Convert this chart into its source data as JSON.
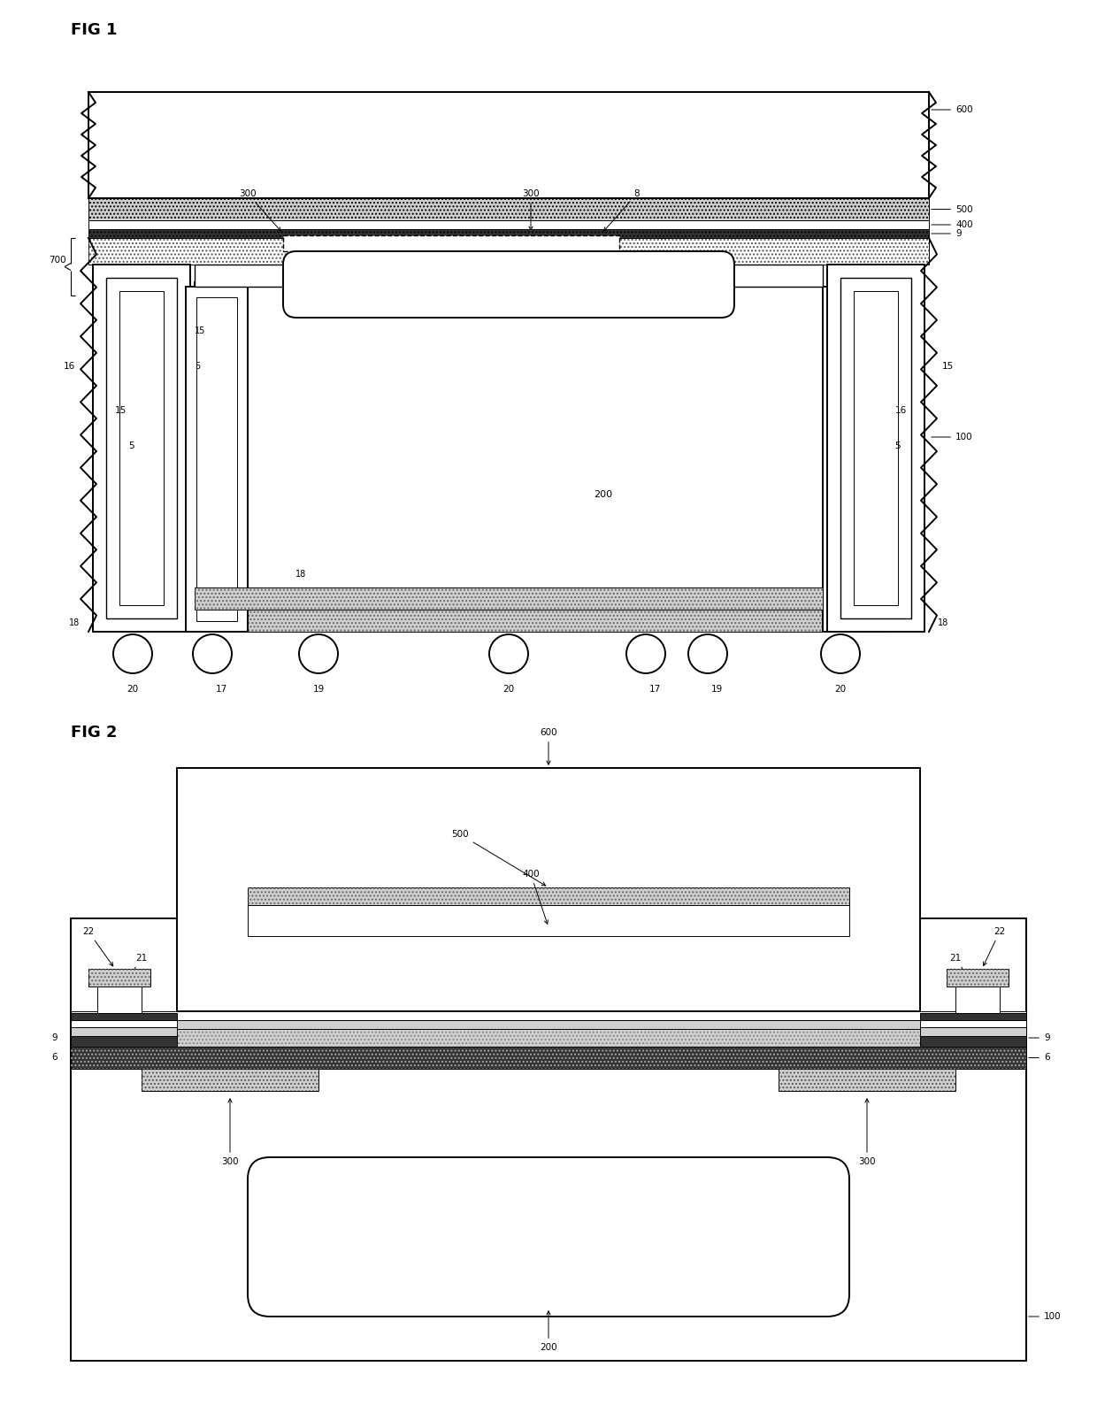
{
  "bg": "#ffffff",
  "black": "#000000",
  "gray_light": "#d0d0d0",
  "gray_mid": "#888888",
  "gray_dark": "#333333",
  "lw_main": 1.4,
  "lw_thin": 0.7,
  "lw_med": 1.0
}
